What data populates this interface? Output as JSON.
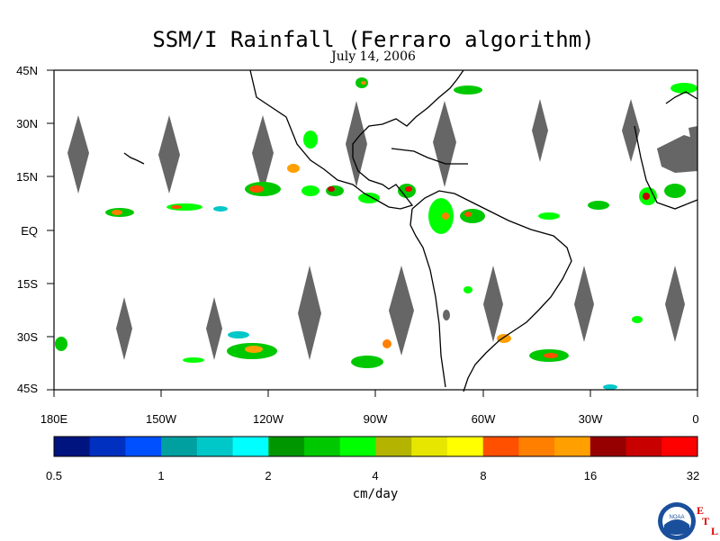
{
  "title": "SSM/I Rainfall (Ferraro algorithm)",
  "subtitle": "July 14, 2006",
  "lat_labels": [
    "45N",
    "30N",
    "15N",
    "EQ",
    "15S",
    "30S",
    "45S"
  ],
  "lon_labels": [
    "180E",
    "150W",
    "120W",
    "90W",
    "60W",
    "30W",
    "0"
  ],
  "colorbar": {
    "colors": [
      "#001480",
      "#0030c0",
      "#0050ff",
      "#00a0a0",
      "#00c8c8",
      "#00ffff",
      "#009600",
      "#00c800",
      "#00ff00",
      "#b4b400",
      "#e6e600",
      "#ffff00",
      "#ff5000",
      "#ff8000",
      "#ffa000",
      "#960000",
      "#c80000",
      "#ff0000"
    ],
    "tick_labels": [
      "0.5",
      "1",
      "2",
      "4",
      "8",
      "16",
      "32"
    ],
    "units": "cm/day"
  },
  "logo": {
    "text": "NOAA",
    "etl_letters": [
      "E",
      "T",
      "L"
    ]
  },
  "colors": {
    "land_outline": "#000000",
    "missing_swath": "#666666"
  }
}
